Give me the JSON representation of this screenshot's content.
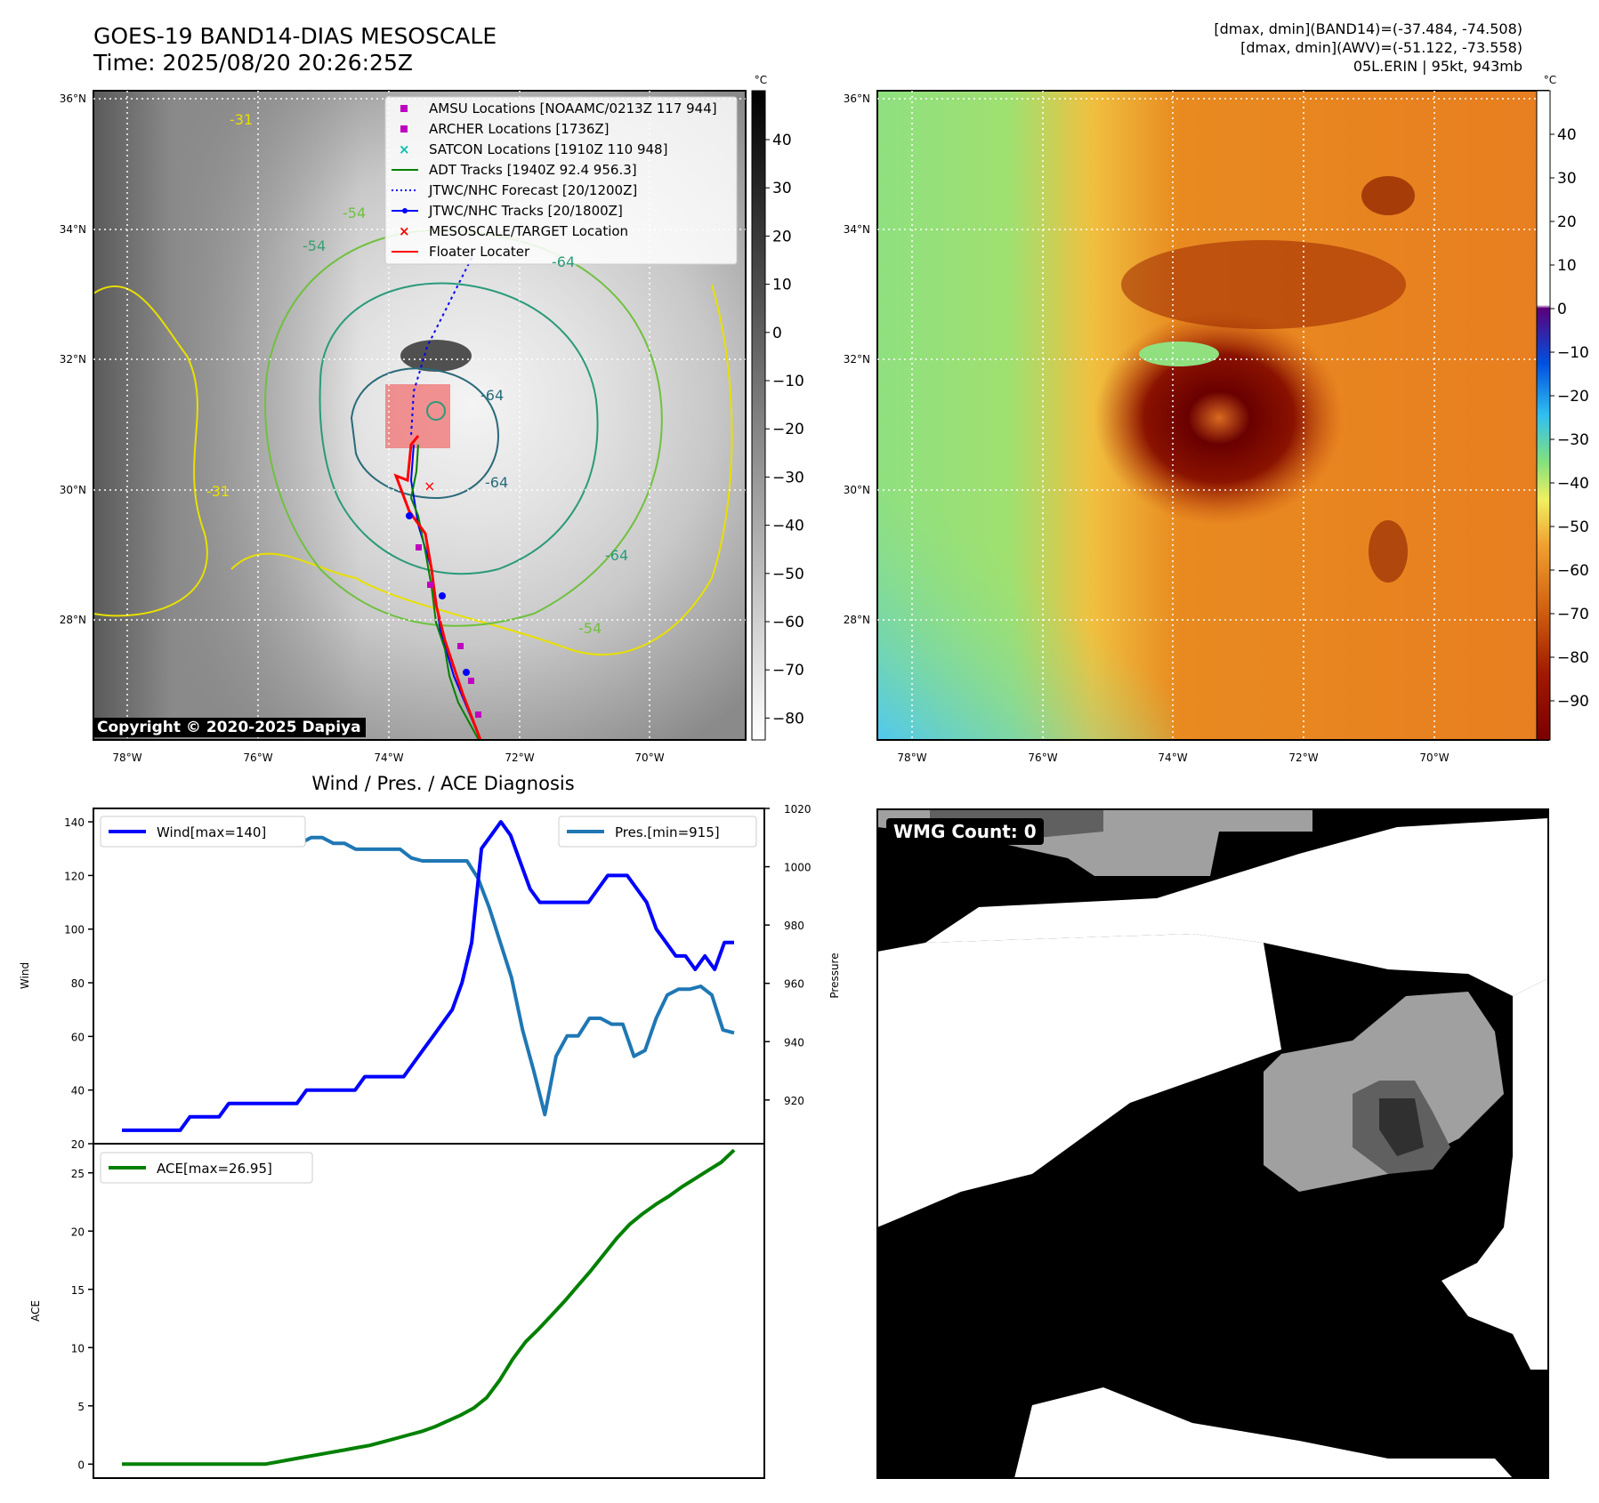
{
  "header": {
    "title_line1": "GOES-19 BAND14-DIAS MESOSCALE",
    "title_line2": "Time: 2025/08/20 20:26:25Z",
    "stats_line1": "[dmax, dmin](BAND14)=(-37.484, -74.508)",
    "stats_line2": "[dmax, dmin](AWV)=(-51.122, -73.558)",
    "stats_line3": "05L.ERIN | 95kt, 943mb"
  },
  "map_panel": {
    "lat_labels": [
      "36°N",
      "34°N",
      "32°N",
      "30°N",
      "28°N"
    ],
    "lon_labels": [
      "78°W",
      "76°W",
      "74°W",
      "72°W",
      "70°W"
    ],
    "contour_labels": [
      "-31",
      "-54",
      "-64",
      "-54",
      "-64",
      "-64",
      "-54",
      "-31",
      "-64"
    ],
    "legend": [
      {
        "label": "AMSU Locations [NOAAMC/0213Z 117 944]",
        "color": "#c000c0"
      },
      {
        "label": "ARCHER Locations [1736Z]",
        "color": "#c000c0"
      },
      {
        "label": "SATCON Locations [1910Z 110 948]",
        "color": "#00c0b0"
      },
      {
        "label": "ADT Tracks [1940Z 92.4 956.3]",
        "color": "#008000"
      },
      {
        "label": "JTWC/NHC Forecast [20/1200Z]",
        "color": "#0000ff"
      },
      {
        "label": "JTWC/NHC Tracks [20/1800Z]",
        "color": "#0000ff"
      },
      {
        "label": "MESOSCALE/TARGET Location",
        "color": "#ff0000"
      },
      {
        "label": "Floater Locater",
        "color": "#ff0000"
      }
    ],
    "colorbar_unit": "°C",
    "colorbar_ticks": [
      "40",
      "30",
      "20",
      "10",
      "0",
      "−10",
      "−20",
      "−30",
      "−40",
      "−50",
      "−60",
      "−70",
      "−80"
    ],
    "copyright": "Copyright © 2020-2025 Dapiya"
  },
  "awv_panel": {
    "lat_labels": [
      "36°N",
      "34°N",
      "32°N",
      "30°N",
      "28°N"
    ],
    "lon_labels": [
      "78°W",
      "76°W",
      "74°W",
      "72°W",
      "70°W"
    ],
    "colorbar_unit": "°C",
    "colorbar_ticks": [
      "40",
      "30",
      "20",
      "10",
      "0",
      "−10",
      "−20",
      "−30",
      "−40",
      "−50",
      "−60",
      "−70",
      "−80",
      "−90"
    ]
  },
  "wmg_panel": {
    "label": "WMG Count: 0"
  },
  "chart_data": [
    {
      "type": "line",
      "title": "Wind / Pres. / ACE Diagnosis",
      "xlabel": "",
      "ylabel": "Wind",
      "ylabel_right": "Pressure",
      "ylim": [
        20,
        145
      ],
      "ylim_right": [
        905,
        1020
      ],
      "yticks": [
        20,
        40,
        60,
        80,
        100,
        120,
        140
      ],
      "yticks_right": [
        920,
        940,
        960,
        980,
        1000,
        1020
      ],
      "grid": false,
      "legend_left_position": "upper-left",
      "legend_right_position": "upper-right",
      "series": [
        {
          "name": "Wind[max=140]",
          "color": "#0000ff",
          "axis": "left",
          "values": [
            25,
            25,
            25,
            25,
            25,
            25,
            25,
            30,
            30,
            30,
            30,
            35,
            35,
            35,
            35,
            35,
            35,
            35,
            35,
            40,
            40,
            40,
            40,
            40,
            40,
            45,
            45,
            45,
            45,
            45,
            50,
            55,
            60,
            65,
            70,
            80,
            95,
            130,
            135,
            140,
            135,
            125,
            115,
            110,
            110,
            110,
            110,
            110,
            110,
            115,
            120,
            120,
            120,
            115,
            110,
            100,
            95,
            90,
            90,
            85,
            90,
            85,
            95,
            95
          ]
        },
        {
          "name": "Pres.[min=915]",
          "color": "#1f77b4",
          "axis": "right",
          "values": [
            1016,
            1016,
            1012,
            1011,
            1010,
            1010,
            1010,
            1010,
            1010,
            1010,
            1010,
            1010,
            1010,
            1008,
            1008,
            1008,
            1008,
            1010,
            1010,
            1008,
            1008,
            1006,
            1006,
            1006,
            1006,
            1006,
            1003,
            1002,
            1002,
            1002,
            1002,
            1002,
            996,
            986,
            974,
            962,
            944,
            930,
            915,
            935,
            942,
            942,
            948,
            948,
            946,
            946,
            935,
            937,
            948,
            956,
            958,
            958,
            959,
            956,
            944,
            943
          ]
        }
      ]
    },
    {
      "type": "line",
      "xlabel": "",
      "ylabel": "ACE",
      "ylim": [
        -1.2,
        27.5
      ],
      "yticks": [
        0,
        5,
        10,
        15,
        20,
        25
      ],
      "grid": false,
      "legend_position": "upper-left",
      "series": [
        {
          "name": "ACE[max=26.95]",
          "color": "#008000",
          "values": [
            0,
            0,
            0,
            0,
            0,
            0,
            0,
            0,
            0,
            0,
            0,
            0,
            0.2,
            0.4,
            0.6,
            0.8,
            1.0,
            1.2,
            1.4,
            1.6,
            1.9,
            2.2,
            2.5,
            2.8,
            3.2,
            3.7,
            4.2,
            4.8,
            5.7,
            7.2,
            9.0,
            10.5,
            11.6,
            12.8,
            14.0,
            15.3,
            16.6,
            18.0,
            19.4,
            20.6,
            21.5,
            22.3,
            23.0,
            23.8,
            24.5,
            25.2,
            25.9,
            26.95
          ]
        }
      ]
    }
  ]
}
